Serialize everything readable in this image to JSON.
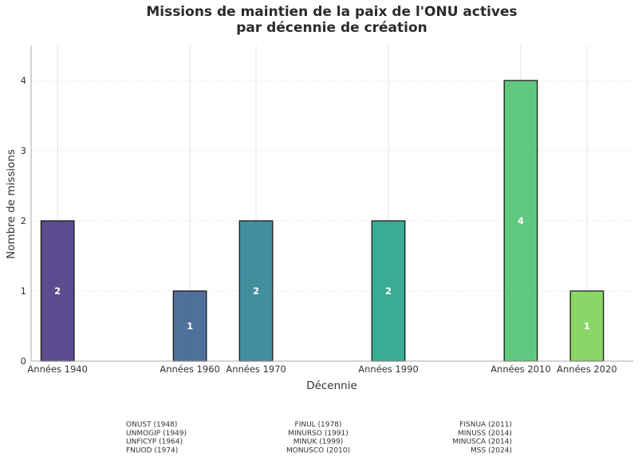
{
  "chart_data": {
    "type": "bar",
    "title": [
      "Missions de maintien de la paix de l'ONU actives",
      "par décennie de création"
    ],
    "xlabel": "Décennie",
    "ylabel": "Nombre de missions",
    "categories": [
      "Années 1940",
      "Années 1960",
      "Années 1970",
      "Années 1990",
      "Années 2010",
      "Années 2020"
    ],
    "x": [
      1940,
      1960,
      1970,
      1990,
      2010,
      2020
    ],
    "values": [
      2,
      1,
      2,
      2,
      4,
      1
    ],
    "bar_colors": [
      "#46327e",
      "#365c8d",
      "#277f8e",
      "#1fa187",
      "#4ac16d",
      "#79d151"
    ],
    "xlim": [
      1936,
      2027
    ],
    "ylim": [
      0,
      4.5
    ],
    "yticks": [
      0,
      1,
      2,
      3,
      4
    ],
    "grid": true,
    "legend": "none",
    "annotations": [
      {
        "anchor": "Années 1960",
        "align": "start",
        "lines": [
          "ONUST (1948)",
          "UNMOGIP (1949)",
          "UNFICYP (1964)",
          "FNUOD (1974)"
        ]
      },
      {
        "anchor": "Années 1990",
        "align": "middle",
        "lines": [
          "FINUL (1978)",
          "MINURSO (1991)",
          "MINUK (1999)",
          "MONUSCO (2010)"
        ]
      },
      {
        "anchor": "Années 2010",
        "align": "end",
        "lines": [
          "FISNUA (2011)",
          "MINUSS (2014)",
          "MINUSCA (2014)",
          "MSS (2024)"
        ]
      }
    ]
  }
}
